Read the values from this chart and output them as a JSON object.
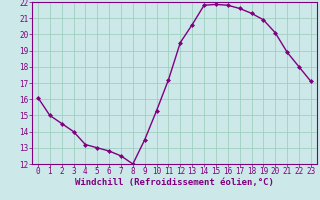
{
  "x": [
    0,
    1,
    2,
    3,
    4,
    5,
    6,
    7,
    8,
    9,
    10,
    11,
    12,
    13,
    14,
    15,
    16,
    17,
    18,
    19,
    20,
    21,
    22,
    23
  ],
  "y": [
    16.1,
    15.0,
    14.5,
    14.0,
    13.2,
    13.0,
    12.8,
    12.5,
    12.0,
    13.5,
    15.3,
    17.2,
    19.5,
    20.6,
    21.8,
    21.85,
    21.8,
    21.6,
    21.3,
    20.9,
    20.1,
    18.9,
    18.0,
    17.1
  ],
  "line_color": "#800080",
  "marker": "D",
  "marker_size": 2.0,
  "background_color": "#cce8e8",
  "grid_color": "#99ccbb",
  "xlabel": "Windchill (Refroidissement éolien,°C)",
  "xlabel_color": "#800080",
  "ylim": [
    12,
    22
  ],
  "xlim_min": -0.5,
  "xlim_max": 23.5,
  "yticks": [
    12,
    13,
    14,
    15,
    16,
    17,
    18,
    19,
    20,
    21,
    22
  ],
  "xticks": [
    0,
    1,
    2,
    3,
    4,
    5,
    6,
    7,
    8,
    9,
    10,
    11,
    12,
    13,
    14,
    15,
    16,
    17,
    18,
    19,
    20,
    21,
    22,
    23
  ],
  "tick_color": "#800080",
  "tick_fontsize": 5.5,
  "xlabel_fontsize": 6.5,
  "line_width": 1.0,
  "spine_color": "#800080"
}
